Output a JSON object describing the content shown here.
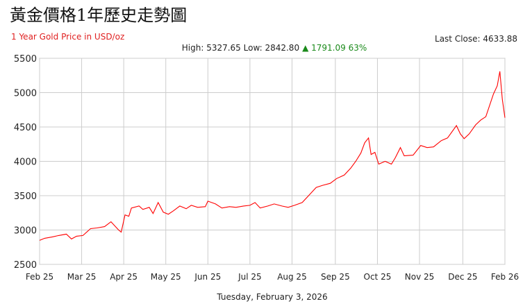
{
  "chart_data": {
    "type": "line",
    "title": "黃金價格1年歷史走勢圖",
    "subtitle": "1 Year Gold Price in USD/oz",
    "last_close": "Last Close: 4633.88",
    "high_low": "High: 5327.65 Low: 2842.80",
    "change": "▲ 1791.09 63%",
    "footer": "Tuesday, February 3, 2026",
    "x": [
      0,
      4,
      10,
      15,
      21,
      25,
      29,
      34,
      40,
      45,
      51,
      56,
      62,
      64,
      67,
      70,
      72,
      78,
      81,
      86,
      89,
      93,
      97,
      101,
      105,
      110,
      115,
      119,
      124,
      130,
      132,
      138,
      143,
      149,
      154,
      160,
      165,
      169,
      173,
      179,
      184,
      190,
      195,
      200,
      206,
      211,
      217,
      222,
      228,
      233,
      239,
      244,
      248,
      252,
      255,
      258,
      260,
      263,
      266,
      271,
      276,
      279,
      283,
      286,
      293,
      299,
      304,
      309,
      315,
      320,
      327,
      330,
      333,
      337,
      342,
      346,
      350,
      356,
      359,
      361,
      363,
      365
    ],
    "series": [
      {
        "name": "Gold",
        "color": "#ff0000",
        "values": [
          2850,
          2880,
          2900,
          2920,
          2940,
          2870,
          2910,
          2920,
          3020,
          3030,
          3050,
          3120,
          3000,
          2970,
          3220,
          3200,
          3320,
          3350,
          3300,
          3330,
          3240,
          3400,
          3260,
          3230,
          3280,
          3350,
          3310,
          3360,
          3330,
          3340,
          3420,
          3380,
          3320,
          3340,
          3330,
          3350,
          3360,
          3400,
          3320,
          3350,
          3380,
          3350,
          3330,
          3360,
          3400,
          3500,
          3620,
          3650,
          3680,
          3750,
          3800,
          3900,
          4000,
          4120,
          4270,
          4340,
          4100,
          4130,
          3960,
          4000,
          3960,
          4050,
          4200,
          4080,
          4090,
          4230,
          4200,
          4210,
          4300,
          4340,
          4520,
          4400,
          4330,
          4400,
          4530,
          4600,
          4650,
          4980,
          5100,
          5310,
          4900,
          4634
        ]
      }
    ],
    "xlim": [
      0,
      365
    ],
    "xticks": [
      {
        "value": 0,
        "label": "Feb 25"
      },
      {
        "value": 33,
        "label": "Mar 25"
      },
      {
        "value": 66,
        "label": "Apr 25"
      },
      {
        "value": 99,
        "label": "May 25"
      },
      {
        "value": 132,
        "label": "Jun 25"
      },
      {
        "value": 165,
        "label": "Jul 25"
      },
      {
        "value": 198,
        "label": "Aug 25"
      },
      {
        "value": 232,
        "label": "Sep 25"
      },
      {
        "value": 265,
        "label": "Oct 25"
      },
      {
        "value": 298,
        "label": "Nov 25"
      },
      {
        "value": 332,
        "label": "Dec 25"
      },
      {
        "value": 365,
        "label": "Feb 26"
      }
    ],
    "ylim": [
      2500,
      5500
    ],
    "yticks": [
      2500,
      3000,
      3500,
      4000,
      4500,
      5000,
      5500
    ],
    "grid": true
  }
}
